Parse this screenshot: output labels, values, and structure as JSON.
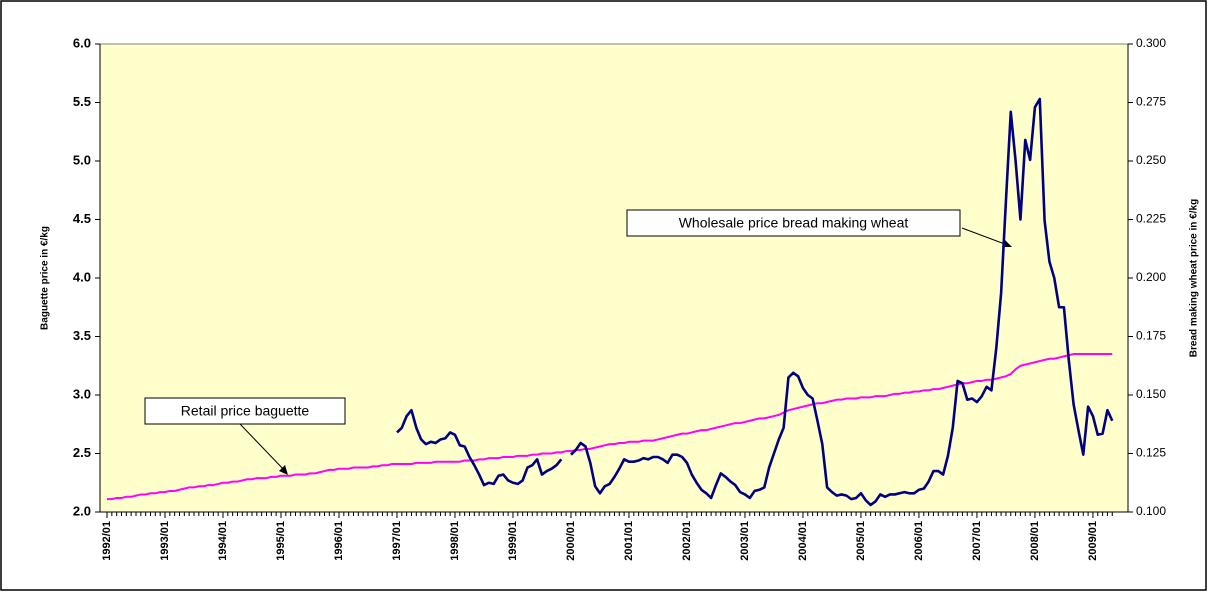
{
  "chart_data": {
    "type": "line",
    "ylabel": "Baguette price in €/kg",
    "y2label": "Bread making wheat price in €/kg",
    "categories": [
      "1992/01",
      null,
      null,
      null,
      null,
      null,
      null,
      null,
      null,
      null,
      null,
      null,
      "1993/01",
      null,
      null,
      null,
      null,
      null,
      null,
      null,
      null,
      null,
      null,
      null,
      "1994/01",
      null,
      null,
      null,
      null,
      null,
      null,
      null,
      null,
      null,
      null,
      null,
      "1995/01",
      null,
      null,
      null,
      null,
      null,
      null,
      null,
      null,
      null,
      null,
      null,
      "1996/01",
      null,
      null,
      null,
      null,
      null,
      null,
      null,
      null,
      null,
      null,
      null,
      "1997/01",
      null,
      null,
      null,
      null,
      null,
      null,
      null,
      null,
      null,
      null,
      null,
      "1998/01",
      null,
      null,
      null,
      null,
      null,
      null,
      null,
      null,
      null,
      null,
      null,
      "1999/01",
      null,
      null,
      null,
      null,
      null,
      null,
      null,
      null,
      null,
      null,
      null,
      "2000/01",
      null,
      null,
      null,
      null,
      null,
      null,
      null,
      null,
      null,
      null,
      null,
      "2001/01",
      null,
      null,
      null,
      null,
      null,
      null,
      null,
      null,
      null,
      null,
      null,
      "2002/01",
      null,
      null,
      null,
      null,
      null,
      null,
      null,
      null,
      null,
      null,
      null,
      "2003/01",
      null,
      null,
      null,
      null,
      null,
      null,
      null,
      null,
      null,
      null,
      null,
      "2004/01",
      null,
      null,
      null,
      null,
      null,
      null,
      null,
      null,
      null,
      null,
      null,
      "2005/01",
      null,
      null,
      null,
      null,
      null,
      null,
      null,
      null,
      null,
      null,
      null,
      "2006/01",
      null,
      null,
      null,
      null,
      null,
      null,
      null,
      null,
      null,
      null,
      null,
      "2007/01",
      null,
      null,
      null,
      null,
      null,
      null,
      null,
      null,
      null,
      null,
      null,
      "2008/01",
      null,
      null,
      null,
      null,
      null,
      null,
      null,
      null,
      null,
      null,
      null,
      "2009/01",
      null,
      null,
      null,
      null
    ],
    "series": [
      {
        "name": "Retail price baguette",
        "color": "#ff00ff",
        "axis": "y",
        "values": [
          2.11,
          2.11,
          2.12,
          2.12,
          2.13,
          2.13,
          2.14,
          2.15,
          2.15,
          2.16,
          2.16,
          2.17,
          2.17,
          2.18,
          2.18,
          2.19,
          2.2,
          2.21,
          2.21,
          2.22,
          2.22,
          2.23,
          2.23,
          2.24,
          2.25,
          2.25,
          2.26,
          2.26,
          2.27,
          2.28,
          2.28,
          2.29,
          2.29,
          2.29,
          2.3,
          2.3,
          2.31,
          2.31,
          2.31,
          2.32,
          2.32,
          2.32,
          2.33,
          2.33,
          2.34,
          2.35,
          2.36,
          2.36,
          2.37,
          2.37,
          2.37,
          2.38,
          2.38,
          2.38,
          2.38,
          2.39,
          2.39,
          2.4,
          2.4,
          2.41,
          2.41,
          2.41,
          2.41,
          2.41,
          2.42,
          2.42,
          2.42,
          2.42,
          2.43,
          2.43,
          2.43,
          2.43,
          2.43,
          2.43,
          2.44,
          2.44,
          2.44,
          2.45,
          2.45,
          2.46,
          2.46,
          2.46,
          2.47,
          2.47,
          2.47,
          2.48,
          2.48,
          2.48,
          2.49,
          2.49,
          2.5,
          2.5,
          2.5,
          2.51,
          2.51,
          2.52,
          2.52,
          2.53,
          2.53,
          2.54,
          2.54,
          2.55,
          2.56,
          2.57,
          2.58,
          2.58,
          2.59,
          2.59,
          2.6,
          2.6,
          2.6,
          2.61,
          2.61,
          2.61,
          2.62,
          2.63,
          2.64,
          2.65,
          2.66,
          2.67,
          2.67,
          2.68,
          2.69,
          2.7,
          2.7,
          2.71,
          2.72,
          2.73,
          2.74,
          2.75,
          2.76,
          2.76,
          2.77,
          2.78,
          2.79,
          2.8,
          2.8,
          2.81,
          2.82,
          2.83,
          2.85,
          2.87,
          2.88,
          2.89,
          2.9,
          2.91,
          2.92,
          2.93,
          2.93,
          2.94,
          2.95,
          2.96,
          2.96,
          2.97,
          2.97,
          2.97,
          2.98,
          2.98,
          2.98,
          2.99,
          2.99,
          2.99,
          3.0,
          3.01,
          3.01,
          3.02,
          3.02,
          3.03,
          3.03,
          3.04,
          3.04,
          3.05,
          3.05,
          3.06,
          3.07,
          3.08,
          3.09,
          3.1,
          3.1,
          3.11,
          3.12,
          3.12,
          3.13,
          3.13,
          3.14,
          3.15,
          3.16,
          3.18,
          3.22,
          3.25,
          3.26,
          3.27,
          3.28,
          3.29,
          3.3,
          3.31,
          3.31,
          3.32,
          3.33,
          3.34,
          3.35,
          3.35,
          3.35,
          3.35,
          3.35,
          3.35,
          3.35,
          3.35,
          3.35
        ]
      },
      {
        "name": "Wholesale price bread making wheat",
        "color": "#000080",
        "axis": "y2",
        "values": [
          null,
          null,
          null,
          null,
          null,
          null,
          null,
          null,
          null,
          null,
          null,
          null,
          null,
          null,
          null,
          null,
          null,
          null,
          null,
          null,
          null,
          null,
          null,
          null,
          null,
          null,
          null,
          null,
          null,
          null,
          null,
          null,
          null,
          null,
          null,
          null,
          null,
          null,
          null,
          null,
          null,
          null,
          null,
          null,
          null,
          null,
          null,
          null,
          null,
          null,
          null,
          null,
          null,
          null,
          null,
          null,
          null,
          null,
          null,
          null,
          0.134,
          0.136,
          0.141,
          0.1435,
          0.136,
          0.131,
          0.129,
          0.13,
          0.1295,
          0.131,
          0.1315,
          0.134,
          0.133,
          0.1285,
          0.128,
          0.1235,
          0.12,
          0.116,
          0.1115,
          0.1125,
          0.112,
          0.1155,
          0.116,
          0.1135,
          0.1125,
          0.112,
          0.1135,
          0.119,
          0.12,
          0.1225,
          0.116,
          0.1175,
          0.1185,
          0.12,
          0.1225,
          null,
          0.1245,
          0.1265,
          0.1295,
          0.128,
          0.121,
          0.111,
          0.108,
          0.111,
          0.112,
          0.115,
          0.1185,
          0.1225,
          0.1215,
          0.1215,
          0.122,
          0.123,
          0.1225,
          0.1235,
          0.1235,
          0.1225,
          0.121,
          0.1245,
          0.1245,
          0.1235,
          0.121,
          0.116,
          0.1125,
          0.1095,
          0.108,
          0.106,
          0.1115,
          0.1165,
          0.115,
          0.113,
          0.1115,
          0.1085,
          0.1075,
          0.106,
          0.109,
          0.1095,
          0.1105,
          0.119,
          0.125,
          0.131,
          0.136,
          0.1575,
          0.1595,
          0.158,
          0.153,
          0.15,
          0.1485,
          0.139,
          0.129,
          0.1105,
          0.1085,
          0.107,
          0.1075,
          0.107,
          0.1055,
          0.106,
          0.108,
          0.105,
          0.103,
          0.1045,
          0.1075,
          0.1065,
          0.1075,
          0.1075,
          0.108,
          0.1085,
          0.108,
          0.108,
          0.1095,
          0.11,
          0.113,
          0.1175,
          0.1175,
          0.116,
          0.124,
          0.136,
          0.156,
          0.155,
          0.148,
          0.1485,
          0.147,
          0.1495,
          0.1535,
          0.152,
          0.17,
          0.1935,
          0.233,
          0.271,
          0.25,
          0.225,
          0.259,
          0.2505,
          0.273,
          0.2765,
          0.2245,
          0.207,
          0.2,
          0.1875,
          0.1875,
          0.165,
          0.146,
          0.135,
          0.1245,
          0.145,
          0.141,
          0.133,
          0.1335,
          0.1435,
          0.139
        ]
      }
    ],
    "ylim": [
      2,
      6
    ],
    "yticks": [
      {
        "value": 2,
        "label": "2.0"
      },
      2.5,
      {
        "value": 3,
        "label": "3.0"
      },
      3.5,
      {
        "value": 4,
        "label": "4.0"
      },
      4.5,
      {
        "value": 5,
        "label": "5.0"
      },
      5.5,
      {
        "value": 6,
        "label": "6.0"
      }
    ],
    "y2lim": [
      0.1,
      0.3
    ],
    "y2ticks": [
      {
        "value": 0.1,
        "label": "0.100"
      },
      {
        "value": 0.125,
        "label": "0.125"
      },
      {
        "value": 0.15,
        "label": "0.150"
      },
      {
        "value": 0.175,
        "label": "0.175"
      },
      {
        "value": 0.2,
        "label": "0.200"
      },
      {
        "value": 0.225,
        "label": "0.225"
      },
      {
        "value": 0.25,
        "label": "0.250"
      },
      {
        "value": 0.275,
        "label": "0.275"
      },
      {
        "value": 0.3,
        "label": "0.300"
      }
    ],
    "grid": false
  }
}
